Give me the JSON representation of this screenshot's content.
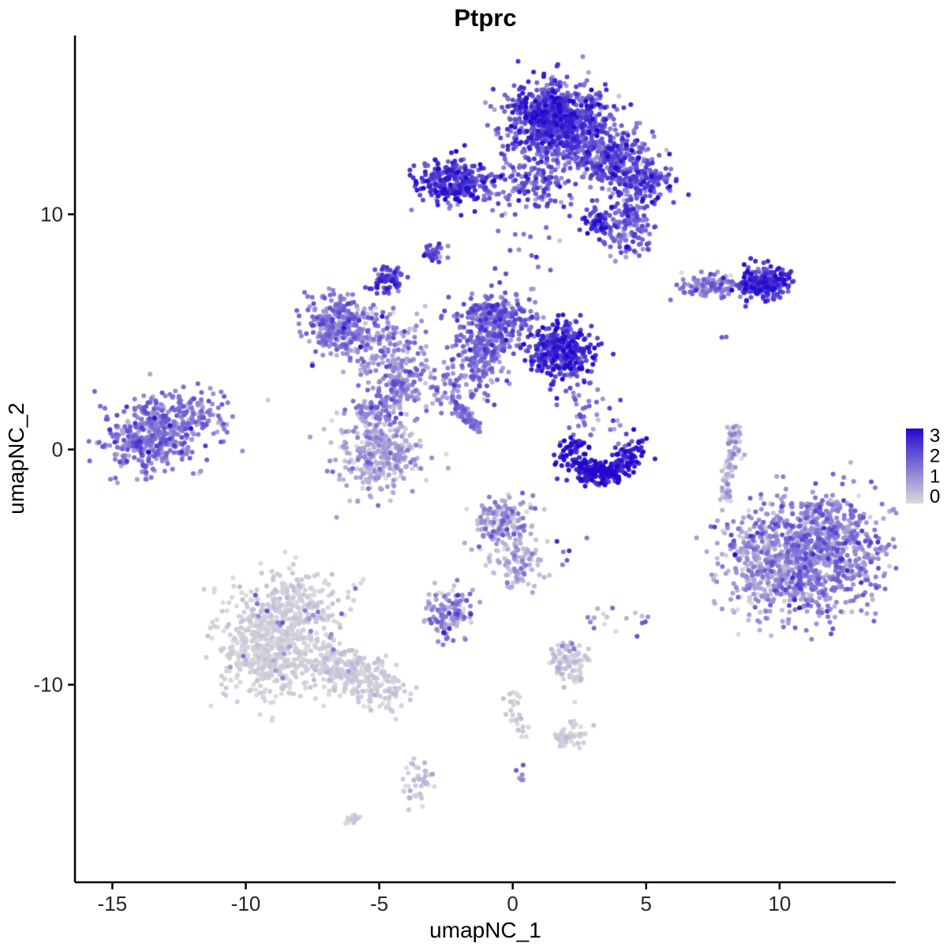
{
  "chart_data": {
    "type": "scatter",
    "title": "Ptprc",
    "xlabel": "umapNC_1",
    "ylabel": "umapNC_2",
    "xlim": [
      -16.4,
      14.35
    ],
    "ylim": [
      -18.4,
      17.6
    ],
    "x_ticks": [
      -15,
      -10,
      -5,
      0,
      5,
      10
    ],
    "y_ticks": [
      -10,
      0,
      10
    ],
    "grid": false,
    "point_radius": 3.0,
    "panel": {
      "background": "#FFFFFF",
      "axis_color": "#000000"
    },
    "legend": {
      "position": "right",
      "ticks": [
        3,
        2,
        1,
        0
      ],
      "value_min": 0,
      "value_max": 3.2,
      "color_low": "#DBDBDB",
      "color_high": "#2209CE"
    },
    "clusters": [
      {
        "name": "top-main-blob",
        "type": "gauss",
        "cx": 1.7,
        "cy": 13.9,
        "sx": 0.95,
        "sy": 0.85,
        "n": 800,
        "expr": [
          1.9,
          0.55
        ]
      },
      {
        "name": "top-main-core",
        "type": "gauss",
        "cx": 1.4,
        "cy": 14.3,
        "sx": 0.5,
        "sy": 0.5,
        "n": 200,
        "expr": [
          2.2,
          0.5
        ]
      },
      {
        "name": "top-lower-arm",
        "type": "gauss",
        "cx": 1.0,
        "cy": 11.3,
        "sx": 0.65,
        "sy": 0.6,
        "n": 110,
        "expr": [
          1.7,
          0.5
        ]
      },
      {
        "name": "top-left-dense",
        "type": "gauss",
        "cx": -2.3,
        "cy": 11.35,
        "sx": 0.6,
        "sy": 0.5,
        "n": 270,
        "expr": [
          2.2,
          0.5
        ]
      },
      {
        "name": "top-left-bridge",
        "type": "gauss",
        "cx": -0.7,
        "cy": 11.1,
        "sx": 0.55,
        "sy": 0.45,
        "n": 40,
        "expr": [
          1.6,
          0.5
        ]
      },
      {
        "name": "arm-right-upper",
        "type": "gauss",
        "cx": 3.6,
        "cy": 12.4,
        "sx": 0.75,
        "sy": 0.65,
        "n": 260,
        "expr": [
          1.8,
          0.5
        ]
      },
      {
        "name": "arm-right-mid",
        "type": "gauss",
        "cx": 4.9,
        "cy": 11.5,
        "sx": 0.5,
        "sy": 0.55,
        "n": 150,
        "expr": [
          1.9,
          0.55
        ]
      },
      {
        "name": "arm-right-lower",
        "type": "gauss",
        "cx": 4.4,
        "cy": 9.6,
        "sx": 0.5,
        "sy": 0.75,
        "n": 150,
        "expr": [
          1.6,
          0.5
        ]
      },
      {
        "name": "arm-dense-clump",
        "type": "gauss",
        "cx": 3.1,
        "cy": 9.7,
        "sx": 0.28,
        "sy": 0.3,
        "n": 60,
        "expr": [
          2.3,
          0.4
        ]
      },
      {
        "name": "mid-sparse-bridge",
        "type": "gauss",
        "cx": 0.6,
        "cy": 8.3,
        "sx": 0.9,
        "sy": 1.1,
        "n": 16,
        "expr": [
          1.4,
          0.4
        ]
      },
      {
        "name": "tiny-left-upper",
        "type": "gauss",
        "cx": -2.95,
        "cy": 8.45,
        "sx": 0.18,
        "sy": 0.22,
        "n": 26,
        "expr": [
          2.0,
          0.4
        ]
      },
      {
        "name": "tiny-left-lower",
        "type": "gauss",
        "cx": -4.65,
        "cy": 7.2,
        "sx": 0.3,
        "sy": 0.27,
        "n": 70,
        "expr": [
          2.0,
          0.4
        ]
      },
      {
        "name": "midleft-main",
        "type": "gauss",
        "cx": -6.6,
        "cy": 5.3,
        "sx": 0.6,
        "sy": 0.65,
        "n": 280,
        "expr": [
          1.25,
          0.5
        ]
      },
      {
        "name": "midleft-east",
        "type": "gauss",
        "cx": -4.9,
        "cy": 4.6,
        "sx": 0.75,
        "sy": 0.8,
        "n": 180,
        "expr": [
          1.0,
          0.5
        ]
      },
      {
        "name": "midleft-junction",
        "type": "gauss",
        "cx": -4.2,
        "cy": 2.9,
        "sx": 0.55,
        "sy": 0.55,
        "n": 120,
        "expr": [
          1.1,
          0.45
        ]
      },
      {
        "name": "center-top",
        "type": "gauss",
        "cx": -0.6,
        "cy": 5.7,
        "sx": 0.8,
        "sy": 0.55,
        "n": 230,
        "expr": [
          1.6,
          0.45
        ]
      },
      {
        "name": "center-mid",
        "type": "gauss",
        "cx": -0.9,
        "cy": 4.5,
        "sx": 0.55,
        "sy": 0.5,
        "n": 150,
        "expr": [
          1.5,
          0.45
        ]
      },
      {
        "name": "center-funnel",
        "type": "gauss",
        "cx": -1.35,
        "cy": 3.2,
        "sx": 0.5,
        "sy": 0.55,
        "n": 90,
        "expr": [
          1.4,
          0.45
        ]
      },
      {
        "name": "center-dense-right",
        "type": "gauss",
        "cx": 1.85,
        "cy": 4.1,
        "sx": 0.62,
        "sy": 0.58,
        "n": 330,
        "expr": [
          2.3,
          0.45
        ]
      },
      {
        "name": "below-dense-sparse",
        "type": "gauss",
        "cx": 2.4,
        "cy": 1.9,
        "sx": 0.45,
        "sy": 0.7,
        "n": 18,
        "expr": [
          1.5,
          0.4
        ]
      },
      {
        "name": "diagonal-streak",
        "type": "line",
        "x1": -2.25,
        "y1": 2.15,
        "x2": -1.3,
        "y2": 0.8,
        "jitter": 0.12,
        "n": 65,
        "expr": [
          1.4,
          0.35
        ]
      },
      {
        "name": "streak-top-sparse",
        "type": "gauss",
        "cx": -2.6,
        "cy": 2.7,
        "sx": 0.45,
        "sy": 0.5,
        "n": 40,
        "expr": [
          1.2,
          0.4
        ]
      },
      {
        "name": "far-left-main",
        "type": "gauss",
        "cx": -13.5,
        "cy": 0.55,
        "sx": 0.85,
        "sy": 0.75,
        "n": 420,
        "expr": [
          1.4,
          0.45
        ]
      },
      {
        "name": "far-left-ext",
        "type": "gauss",
        "cx": -11.9,
        "cy": 1.4,
        "sx": 0.7,
        "sy": 0.5,
        "n": 110,
        "expr": [
          1.3,
          0.45
        ]
      },
      {
        "name": "centerleft-top",
        "type": "gauss",
        "cx": -5.1,
        "cy": 1.7,
        "sx": 0.55,
        "sy": 0.4,
        "n": 90,
        "expr": [
          1.25,
          0.45
        ]
      },
      {
        "name": "centerleft-main",
        "type": "gauss",
        "cx": -5.0,
        "cy": -0.2,
        "sx": 0.8,
        "sy": 0.85,
        "n": 340,
        "expr": [
          0.6,
          0.45
        ]
      },
      {
        "name": "crescent-arc",
        "type": "arc",
        "cx": 3.3,
        "cy": 0.05,
        "r": 1.15,
        "a1": 175,
        "a2": 365,
        "jitter": 0.28,
        "n": 240,
        "expr": [
          2.6,
          0.45
        ]
      },
      {
        "name": "crescent-core",
        "type": "gauss",
        "cx": 3.3,
        "cy": -0.9,
        "sx": 0.35,
        "sy": 0.2,
        "n": 80,
        "expr": [
          2.7,
          0.4
        ]
      },
      {
        "name": "crescent-above-sparse",
        "type": "gauss",
        "cx": 3.1,
        "cy": 1.3,
        "sx": 0.5,
        "sy": 0.6,
        "n": 22,
        "expr": [
          1.4,
          0.5
        ]
      },
      {
        "name": "right-strip",
        "type": "line",
        "x1": 8.4,
        "y1": 1.0,
        "x2": 7.95,
        "y2": -2.1,
        "jitter": 0.16,
        "n": 85,
        "expr": [
          0.55,
          0.45
        ]
      },
      {
        "name": "right-small-light",
        "type": "gauss",
        "cx": 7.5,
        "cy": 6.9,
        "sx": 0.7,
        "sy": 0.28,
        "n": 110,
        "expr": [
          1.3,
          0.45
        ]
      },
      {
        "name": "right-small-dense",
        "type": "gauss",
        "cx": 9.4,
        "cy": 7.0,
        "sx": 0.5,
        "sy": 0.33,
        "n": 230,
        "expr": [
          2.2,
          0.45
        ]
      },
      {
        "name": "lone-dots-right",
        "type": "gauss",
        "cx": 8.0,
        "cy": 4.7,
        "sx": 0.1,
        "sy": 0.1,
        "n": 2,
        "expr": [
          1.8,
          0.2
        ]
      },
      {
        "name": "right-main-blob",
        "type": "gauss",
        "cx": 11.2,
        "cy": -4.6,
        "sx": 1.3,
        "sy": 1.25,
        "n": 1000,
        "expr": [
          1.15,
          0.5
        ]
      },
      {
        "name": "right-left-edge",
        "type": "gauss",
        "cx": 9.0,
        "cy": -5.0,
        "sx": 0.7,
        "sy": 1.1,
        "n": 160,
        "expr": [
          0.6,
          0.4
        ]
      },
      {
        "name": "right-top-edge",
        "type": "gauss",
        "cx": 11.6,
        "cy": -2.9,
        "sx": 0.8,
        "sy": 0.4,
        "n": 70,
        "expr": [
          1.0,
          0.45
        ]
      },
      {
        "name": "center-low-blob",
        "type": "gauss",
        "cx": -0.3,
        "cy": -3.1,
        "sx": 0.6,
        "sy": 0.5,
        "n": 170,
        "expr": [
          0.75,
          0.6
        ]
      },
      {
        "name": "center-low-tail",
        "type": "gauss",
        "cx": 0.2,
        "cy": -4.9,
        "sx": 0.45,
        "sy": 0.6,
        "n": 100,
        "expr": [
          0.5,
          0.4
        ]
      },
      {
        "name": "center-low-dots",
        "type": "gauss",
        "cx": 2.0,
        "cy": -4.4,
        "sx": 0.35,
        "sy": 0.45,
        "n": 6,
        "expr": [
          1.6,
          0.5
        ]
      },
      {
        "name": "small-mid-cluster",
        "type": "gauss",
        "cx": -2.4,
        "cy": -7.0,
        "sx": 0.45,
        "sy": 0.5,
        "n": 130,
        "expr": [
          0.9,
          0.6
        ]
      },
      {
        "name": "gray-main",
        "type": "gauss",
        "cx": -9.0,
        "cy": -8.5,
        "sx": 1.05,
        "sy": 1.05,
        "n": 520,
        "expr": [
          0.12,
          0.12
        ]
      },
      {
        "name": "gray-top",
        "type": "gauss",
        "cx": -8.3,
        "cy": -6.4,
        "sx": 0.95,
        "sy": 0.65,
        "n": 210,
        "expr": [
          0.15,
          0.15
        ]
      },
      {
        "name": "gray-arm",
        "type": "line",
        "x1": -7.3,
        "y1": -8.7,
        "x2": -4.6,
        "y2": -10.3,
        "jitter": 0.5,
        "n": 300,
        "expr": [
          0.15,
          0.15
        ]
      },
      {
        "name": "gray-purple-sprinkle",
        "type": "gauss",
        "cx": -8.6,
        "cy": -8.0,
        "sx": 1.3,
        "sy": 1.3,
        "n": 26,
        "expr": [
          1.3,
          0.45
        ]
      },
      {
        "name": "small-right-gray",
        "type": "gauss",
        "cx": 2.2,
        "cy": -9.1,
        "sx": 0.38,
        "sy": 0.5,
        "n": 90,
        "expr": [
          0.2,
          0.2
        ]
      },
      {
        "name": "small-right-purple",
        "type": "gauss",
        "cx": 2.1,
        "cy": -8.5,
        "sx": 0.2,
        "sy": 0.2,
        "n": 4,
        "expr": [
          1.2,
          0.3
        ]
      },
      {
        "name": "dots-mid-low",
        "type": "gauss",
        "cx": 3.35,
        "cy": -7.2,
        "sx": 0.3,
        "sy": 0.35,
        "n": 10,
        "expr": [
          0.7,
          0.5
        ]
      },
      {
        "name": "dots-right-low",
        "type": "gauss",
        "cx": 4.7,
        "cy": -7.3,
        "sx": 0.35,
        "sy": 0.45,
        "n": 8,
        "expr": [
          0.9,
          0.6
        ]
      },
      {
        "name": "trail-low",
        "type": "line",
        "x1": 0.05,
        "y1": -10.2,
        "x2": 0.4,
        "y2": -12.5,
        "jitter": 0.22,
        "n": 30,
        "expr": [
          0.15,
          0.12
        ]
      },
      {
        "name": "clump-low-right",
        "type": "gauss",
        "cx": 2.1,
        "cy": -12.2,
        "sx": 0.32,
        "sy": 0.27,
        "n": 50,
        "expr": [
          0.15,
          0.12
        ]
      },
      {
        "name": "clump-bottom",
        "type": "gauss",
        "cx": -3.5,
        "cy": -14.2,
        "sx": 0.28,
        "sy": 0.45,
        "n": 45,
        "expr": [
          0.25,
          0.25
        ]
      },
      {
        "name": "tiny-bottom-center",
        "type": "gauss",
        "cx": 0.25,
        "cy": -13.9,
        "sx": 0.12,
        "sy": 0.18,
        "n": 6,
        "expr": [
          0.8,
          0.6
        ]
      },
      {
        "name": "tiny-bottom-left",
        "type": "line",
        "x1": -6.3,
        "y1": -15.9,
        "x2": -5.85,
        "y2": -15.6,
        "jitter": 0.08,
        "n": 14,
        "expr": [
          0.2,
          0.15
        ]
      }
    ]
  }
}
